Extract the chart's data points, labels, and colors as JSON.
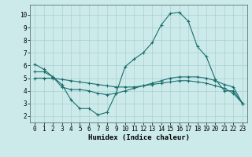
{
  "title": "",
  "xlabel": "Humidex (Indice chaleur)",
  "x": [
    0,
    1,
    2,
    3,
    4,
    5,
    6,
    7,
    8,
    9,
    10,
    11,
    12,
    13,
    14,
    15,
    16,
    17,
    18,
    19,
    20,
    21,
    22,
    23
  ],
  "line1": [
    6.1,
    5.7,
    5.1,
    4.5,
    3.3,
    2.6,
    2.6,
    2.1,
    2.3,
    3.8,
    5.9,
    6.5,
    7.0,
    7.8,
    9.2,
    10.1,
    10.2,
    9.5,
    7.5,
    6.7,
    4.9,
    4.0,
    4.0,
    3.0
  ],
  "line2": [
    5.5,
    5.5,
    5.1,
    4.3,
    4.1,
    4.1,
    4.0,
    3.8,
    3.7,
    3.8,
    4.0,
    4.2,
    4.4,
    4.6,
    4.8,
    5.0,
    5.1,
    5.1,
    5.1,
    5.0,
    4.8,
    4.5,
    4.3,
    3.0
  ],
  "line3": [
    5.0,
    5.0,
    5.0,
    4.9,
    4.8,
    4.7,
    4.6,
    4.5,
    4.4,
    4.3,
    4.3,
    4.3,
    4.4,
    4.5,
    4.6,
    4.7,
    4.8,
    4.8,
    4.7,
    4.6,
    4.4,
    4.2,
    3.8,
    3.0
  ],
  "line_color": "#1a6e6e",
  "bg_color": "#cceaea",
  "grid_color": "#aacfcf",
  "xlim": [
    -0.5,
    23.5
  ],
  "ylim": [
    1.5,
    10.8
  ],
  "yticks": [
    2,
    3,
    4,
    5,
    6,
    7,
    8,
    9,
    10
  ],
  "xticks": [
    0,
    1,
    2,
    3,
    4,
    5,
    6,
    7,
    8,
    9,
    10,
    11,
    12,
    13,
    14,
    15,
    16,
    17,
    18,
    19,
    20,
    21,
    22,
    23
  ],
  "tick_fontsize": 5.5,
  "xlabel_fontsize": 6.5,
  "linewidth": 0.8,
  "markersize": 3.0,
  "markeredgewidth": 0.8
}
